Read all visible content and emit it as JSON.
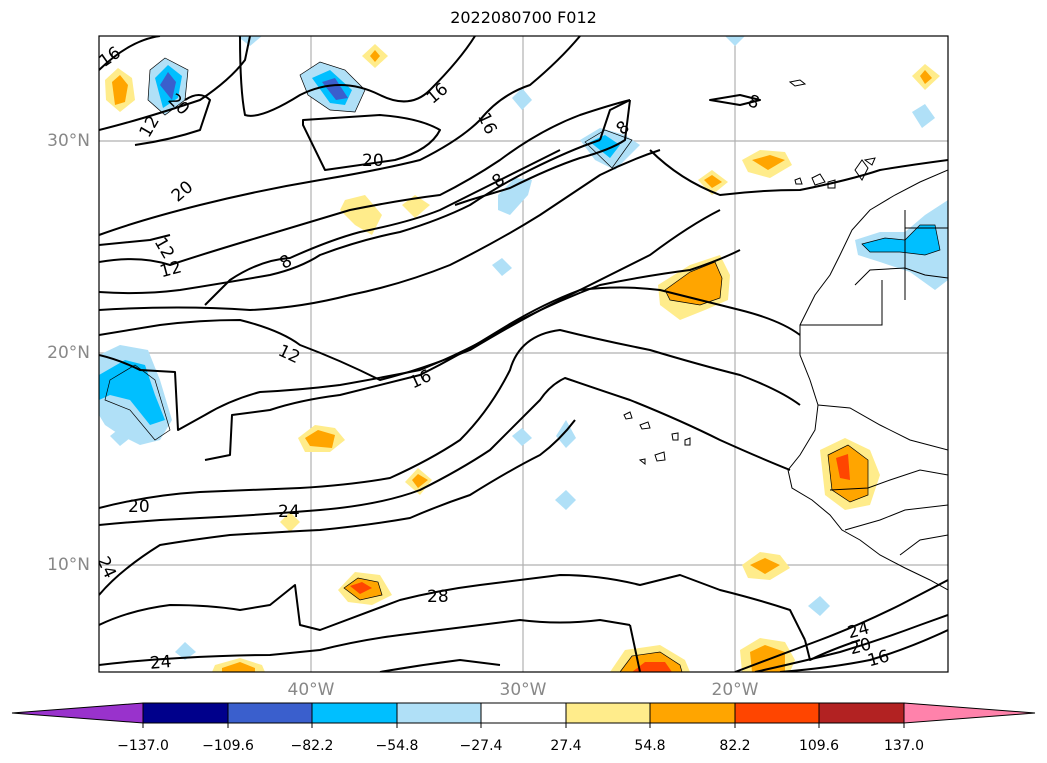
{
  "title": "2022080700 F012",
  "map": {
    "lat_labels": [
      "30°N",
      "20°N",
      "10°N"
    ],
    "lon_labels": [
      "40°W",
      "30°W",
      "20°W"
    ],
    "contour_labels": [
      "16",
      "20",
      "12",
      "16",
      "16",
      "20",
      "20",
      "8",
      "8",
      "8",
      "12",
      "12",
      "8",
      "12",
      "16",
      "20",
      "24",
      "24",
      "28",
      "24",
      "24",
      "20",
      "16"
    ]
  },
  "colorbar": {
    "ticks": [
      "−137.0",
      "−109.6",
      "−82.2",
      "−54.8",
      "−27.4",
      "27.4",
      "54.8",
      "82.2",
      "109.6",
      "137.0"
    ],
    "colors": [
      "#9932cc",
      "#00008b",
      "#3a5fcd",
      "#00bfff",
      "#b0e0f7",
      "#ffffff",
      "#ffec8b",
      "#ffa500",
      "#ff4500",
      "#b22222",
      "#ff82ab"
    ]
  }
}
